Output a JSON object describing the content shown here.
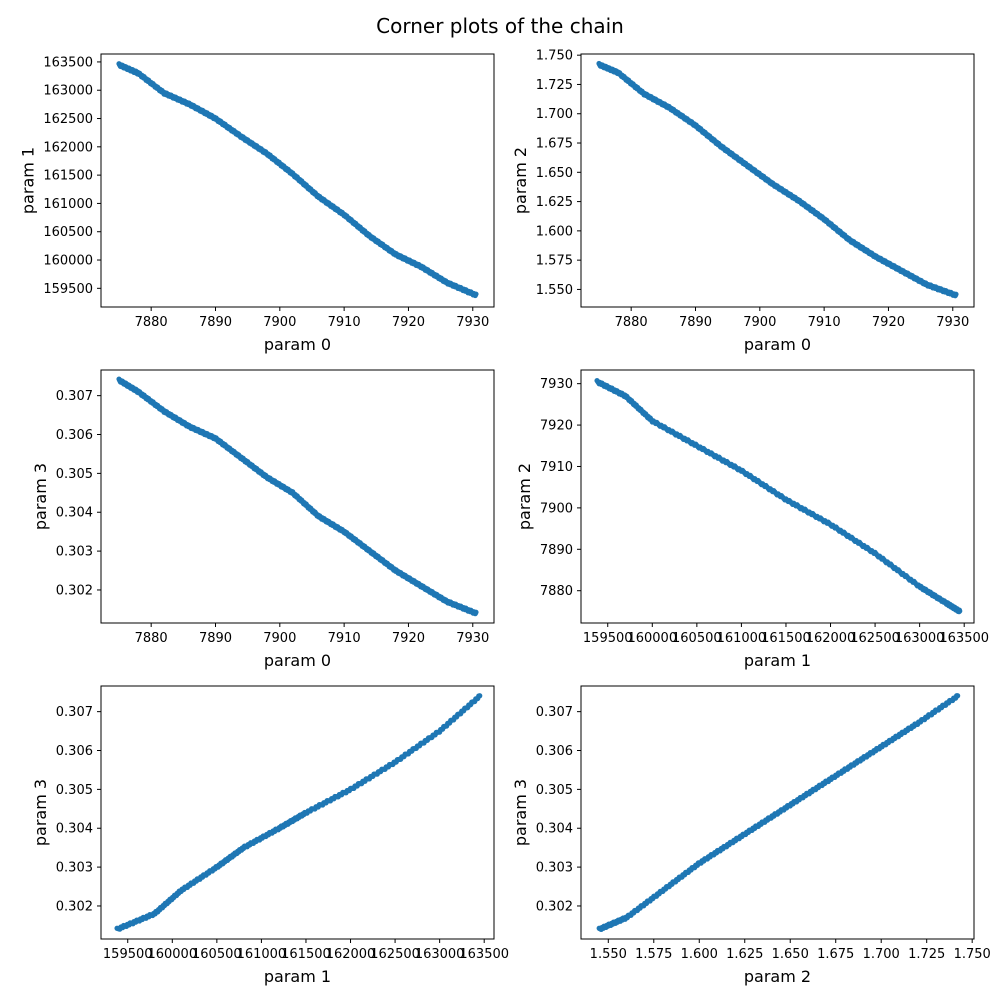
{
  "figure": {
    "title": "Corner plots of the chain"
  },
  "colors": {
    "series": "#1f77b4",
    "axes": "#000000",
    "background": "#ffffff"
  },
  "chart_data": [
    {
      "type": "scatter",
      "xlabel": "param 0",
      "ylabel": "param 1",
      "xlim": [
        7872.2,
        7933.3
      ],
      "ylim": [
        159170,
        163640
      ],
      "xticks": [
        7880,
        7890,
        7900,
        7910,
        7920,
        7930
      ],
      "xtick_labels": [
        "7880",
        "7890",
        "7900",
        "7910",
        "7920",
        "7930"
      ],
      "yticks": [
        159500,
        160000,
        160500,
        161000,
        161500,
        162000,
        162500,
        163000,
        163500
      ],
      "ytick_labels": [
        "159500",
        "160000",
        "160500",
        "161000",
        "161500",
        "162000",
        "162500",
        "163000",
        "163500"
      ],
      "points": [
        [
          7875,
          163450
        ],
        [
          7878,
          163300
        ],
        [
          7882,
          162950
        ],
        [
          7886,
          162750
        ],
        [
          7890,
          162500
        ],
        [
          7894,
          162180
        ],
        [
          7898,
          161880
        ],
        [
          7902,
          161520
        ],
        [
          7906,
          161120
        ],
        [
          7910,
          160800
        ],
        [
          7914,
          160420
        ],
        [
          7918,
          160100
        ],
        [
          7922,
          159880
        ],
        [
          7926,
          159600
        ],
        [
          7930.5,
          159380
        ]
      ],
      "grid": false
    },
    {
      "type": "scatter",
      "xlabel": "param 0",
      "ylabel": "param 2",
      "xlim": [
        7872.2,
        7933.3
      ],
      "ylim": [
        1.535,
        1.751
      ],
      "xticks": [
        7880,
        7890,
        7900,
        7910,
        7920,
        7930
      ],
      "xtick_labels": [
        "7880",
        "7890",
        "7900",
        "7910",
        "7920",
        "7930"
      ],
      "yticks": [
        1.55,
        1.575,
        1.6,
        1.625,
        1.65,
        1.675,
        1.7,
        1.725,
        1.75
      ],
      "ytick_labels": [
        "1.550",
        "1.575",
        "1.600",
        "1.625",
        "1.650",
        "1.675",
        "1.700",
        "1.725",
        "1.750"
      ],
      "points": [
        [
          7875,
          1.742
        ],
        [
          7878,
          1.735
        ],
        [
          7882,
          1.717
        ],
        [
          7886,
          1.705
        ],
        [
          7890,
          1.69
        ],
        [
          7894,
          1.672
        ],
        [
          7898,
          1.656
        ],
        [
          7902,
          1.64
        ],
        [
          7906,
          1.626
        ],
        [
          7910,
          1.61
        ],
        [
          7914,
          1.592
        ],
        [
          7918,
          1.578
        ],
        [
          7922,
          1.566
        ],
        [
          7926,
          1.554
        ],
        [
          7930.5,
          1.545
        ]
      ],
      "grid": false
    },
    {
      "type": "scatter",
      "xlabel": "param 0",
      "ylabel": "param 3",
      "xlim": [
        7872.2,
        7933.3
      ],
      "ylim": [
        0.30115,
        0.30766
      ],
      "xticks": [
        7880,
        7890,
        7900,
        7910,
        7920,
        7930
      ],
      "xtick_labels": [
        "7880",
        "7890",
        "7900",
        "7910",
        "7920",
        "7930"
      ],
      "yticks": [
        0.302,
        0.303,
        0.304,
        0.305,
        0.306,
        0.307
      ],
      "ytick_labels": [
        "0.302",
        "0.303",
        "0.304",
        "0.305",
        "0.306",
        "0.307"
      ],
      "points": [
        [
          7875,
          0.3074
        ],
        [
          7878,
          0.3071
        ],
        [
          7882,
          0.3066
        ],
        [
          7886,
          0.3062
        ],
        [
          7890,
          0.3059
        ],
        [
          7894,
          0.3054
        ],
        [
          7898,
          0.3049
        ],
        [
          7902,
          0.3045
        ],
        [
          7906,
          0.3039
        ],
        [
          7910,
          0.3035
        ],
        [
          7914,
          0.303
        ],
        [
          7918,
          0.3025
        ],
        [
          7922,
          0.3021
        ],
        [
          7926,
          0.3017
        ],
        [
          7930.5,
          0.3014
        ]
      ],
      "grid": false
    },
    {
      "type": "scatter",
      "xlabel": "param 1",
      "ylabel": "param 2",
      "xlim": [
        159200,
        163610
      ],
      "ylim": [
        7872.2,
        7933.3
      ],
      "xticks": [
        159500,
        160000,
        160500,
        161000,
        161500,
        162000,
        162500,
        163000,
        163500
      ],
      "xtick_labels": [
        "159500",
        "160000",
        "160500",
        "161000",
        "161500",
        "162000",
        "162500",
        "163000",
        "163500"
      ],
      "yticks": [
        7880,
        7890,
        7900,
        7910,
        7920,
        7930
      ],
      "ytick_labels": [
        "7880",
        "7890",
        "7900",
        "7910",
        "7920",
        "7930"
      ],
      "points": [
        [
          159380,
          7930.5
        ],
        [
          159700,
          7927
        ],
        [
          160000,
          7921
        ],
        [
          160500,
          7915
        ],
        [
          161000,
          7909
        ],
        [
          161500,
          7902
        ],
        [
          162000,
          7896
        ],
        [
          162500,
          7889
        ],
        [
          163000,
          7881
        ],
        [
          163300,
          7877
        ],
        [
          163450,
          7875
        ]
      ],
      "grid": false
    },
    {
      "type": "scatter",
      "xlabel": "param 1",
      "ylabel": "param 3",
      "xlim": [
        159200,
        163610
      ],
      "ylim": [
        0.30115,
        0.30766
      ],
      "xticks": [
        159500,
        160000,
        160500,
        161000,
        161500,
        162000,
        162500,
        163000,
        163500
      ],
      "xtick_labels": [
        "159500",
        "160000",
        "160500",
        "161000",
        "161500",
        "162000",
        "162500",
        "163000",
        "163500"
      ],
      "yticks": [
        0.302,
        0.303,
        0.304,
        0.305,
        0.306,
        0.307
      ],
      "ytick_labels": [
        "0.302",
        "0.303",
        "0.304",
        "0.305",
        "0.306",
        "0.307"
      ],
      "points": [
        [
          159380,
          0.3014
        ],
        [
          159800,
          0.3018
        ],
        [
          160100,
          0.3024
        ],
        [
          160500,
          0.303
        ],
        [
          160800,
          0.3035
        ],
        [
          161200,
          0.304
        ],
        [
          161500,
          0.3044
        ],
        [
          162000,
          0.305
        ],
        [
          162500,
          0.3057
        ],
        [
          163000,
          0.3065
        ],
        [
          163450,
          0.3074
        ]
      ],
      "grid": false
    },
    {
      "type": "scatter",
      "xlabel": "param 2",
      "ylabel": "param 3",
      "xlim": [
        1.535,
        1.751
      ],
      "ylim": [
        0.30115,
        0.30766
      ],
      "xticks": [
        1.55,
        1.575,
        1.6,
        1.625,
        1.65,
        1.675,
        1.7,
        1.725,
        1.75
      ],
      "xtick_labels": [
        "1.550",
        "1.575",
        "1.600",
        "1.625",
        "1.650",
        "1.675",
        "1.700",
        "1.725",
        "1.750"
      ],
      "yticks": [
        0.302,
        0.303,
        0.304,
        0.305,
        0.306,
        0.307
      ],
      "ytick_labels": [
        "0.302",
        "0.303",
        "0.304",
        "0.305",
        "0.306",
        "0.307"
      ],
      "points": [
        [
          1.545,
          0.3014
        ],
        [
          1.56,
          0.3017
        ],
        [
          1.58,
          0.3024
        ],
        [
          1.6,
          0.3031
        ],
        [
          1.62,
          0.3037
        ],
        [
          1.64,
          0.3043
        ],
        [
          1.66,
          0.3049
        ],
        [
          1.68,
          0.3055
        ],
        [
          1.7,
          0.3061
        ],
        [
          1.72,
          0.3067
        ],
        [
          1.742,
          0.3074
        ]
      ],
      "grid": false
    }
  ]
}
